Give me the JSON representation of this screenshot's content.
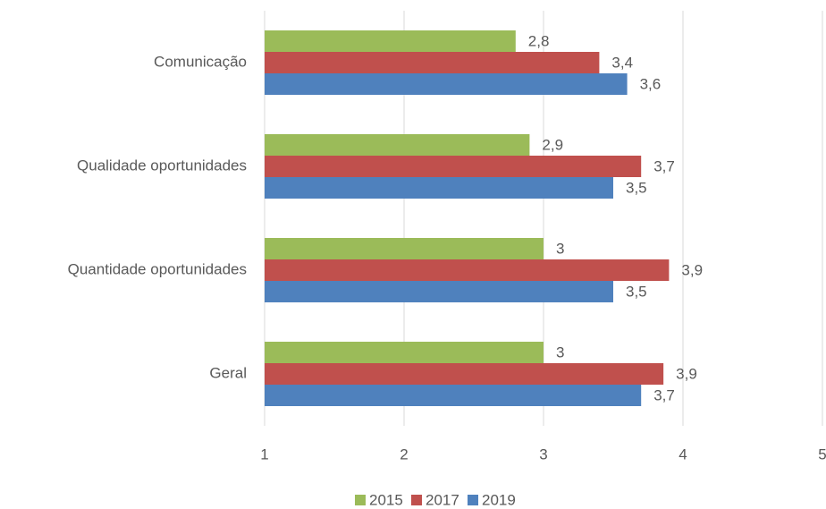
{
  "chart_data": {
    "type": "bar",
    "orientation": "horizontal",
    "categories": [
      "Comunicação",
      "Qualidade oportunidades",
      "Quantidade oportunidades",
      "Geral"
    ],
    "series": [
      {
        "name": "2015",
        "color": "#9bbb59",
        "values": [
          2.8,
          2.9,
          3,
          3
        ],
        "value_labels": [
          "2,8",
          "2,9",
          "3",
          "3"
        ]
      },
      {
        "name": "2017",
        "color": "#c0504d",
        "values": [
          3.4,
          3.7,
          3.9,
          3.86
        ],
        "value_labels": [
          "3,4",
          "3,7",
          "3,9",
          "3,9"
        ]
      },
      {
        "name": "2019",
        "color": "#4f81bd",
        "values": [
          3.6,
          3.5,
          3.5,
          3.7
        ],
        "value_labels": [
          "3,6",
          "3,5",
          "3,5",
          "3,7"
        ]
      }
    ],
    "xlim": [
      1,
      5
    ],
    "xticks": [
      1,
      2,
      3,
      4,
      5
    ],
    "grid": true,
    "legend": "bottom"
  }
}
